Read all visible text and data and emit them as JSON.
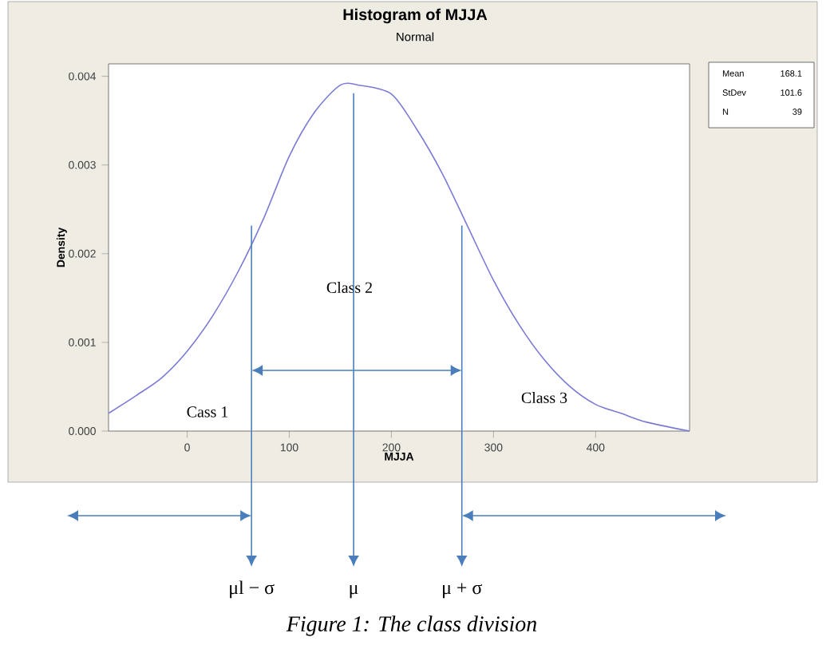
{
  "chart_data": {
    "type": "line",
    "title": "Histogram of MJJA",
    "subtitle": "Normal",
    "xlabel": "MJJA",
    "ylabel": "Density",
    "x": [
      -77,
      -50,
      -25,
      0,
      25,
      50,
      75,
      100,
      125,
      150,
      168,
      200,
      225,
      250,
      275,
      300,
      325,
      350,
      375,
      400,
      425,
      450,
      492
    ],
    "series": [
      {
        "color": "#7b7bd6",
        "values": [
          0.0002,
          0.0004,
          0.0006,
          0.0009,
          0.0013,
          0.0018,
          0.0024,
          0.0031,
          0.0036,
          0.0039,
          0.0039,
          0.0038,
          0.0034,
          0.0029,
          0.0023,
          0.0017,
          0.0012,
          0.0008,
          0.0005,
          0.0003,
          0.0002,
          0.0001,
          0.0
        ]
      }
    ],
    "xlim": [
      -77,
      492
    ],
    "ylim": [
      0,
      0.00414
    ],
    "xticks": [
      0,
      100,
      200,
      300,
      400
    ],
    "yticks": [
      {
        "value": 0,
        "label": "0.000"
      },
      {
        "value": 0.001,
        "label": "0.001"
      },
      {
        "value": 0.002,
        "label": "0.002"
      },
      {
        "value": 0.003,
        "label": "0.003"
      },
      {
        "value": 0.004,
        "label": "0.004"
      }
    ],
    "grid": false,
    "ref_lines": [
      {
        "axis": "x",
        "value": 63,
        "label": "μl − σ",
        "color": "#4a7ebb"
      },
      {
        "axis": "x",
        "value": 163,
        "label": "μ",
        "color": "#4a7ebb"
      },
      {
        "axis": "x",
        "value": 269,
        "label": "μ + σ",
        "color": "#4a7ebb"
      }
    ],
    "annotations": [
      "Cass 1",
      "Class 2",
      "Class 3",
      "Mean",
      "168.1",
      "StDev",
      "101.6",
      "N",
      "39",
      "Figure 1: The class division"
    ]
  }
}
